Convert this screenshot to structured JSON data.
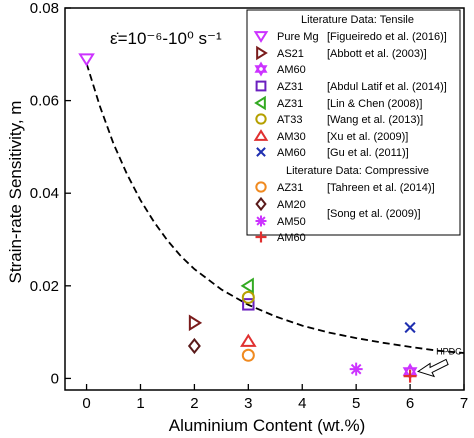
{
  "chart_data": {
    "type": "scatter",
    "xlabel": "Aluminium Content (wt.%)",
    "ylabel": "Strain-rate Sensitivity, m",
    "xlim": [
      -0.4,
      7
    ],
    "ylim": [
      -0.0025,
      0.08
    ],
    "xticks": [
      "0",
      "1",
      "2",
      "3",
      "4",
      "5",
      "6",
      "7"
    ],
    "yticks": [
      "0",
      "0.02",
      "0.04",
      "0.06",
      "0.08"
    ],
    "strain_rate_label": "ε̇=10⁻⁶-10⁰ s⁻¹",
    "grid": false,
    "legend_position": "top-right",
    "legend_tensile_header": "Literature Data: Tensile",
    "legend_compressive_header": "Literature Data: Compressive",
    "series": [
      {
        "name": "Pure Mg",
        "reference": "[Figueiredo et al. (2016)]",
        "marker": "triangle-down",
        "color": "#cc33ff",
        "points": [
          [
            0,
            0.069
          ]
        ]
      },
      {
        "name": "AS21",
        "reference": "[Abbott et al. (2003)]",
        "marker": "triangle-right",
        "color": "#7a1c1c",
        "points": [
          [
            2,
            0.012
          ]
        ]
      },
      {
        "name": "AM60",
        "reference": "",
        "marker": "star-of-david",
        "color": "#cc33ff",
        "points": [
          [
            6,
            0.0015
          ]
        ]
      },
      {
        "name": "AZ31",
        "reference": "[Abdul Latif et al. (2014)]",
        "marker": "square",
        "color": "#6a1fbf",
        "points": [
          [
            3,
            0.016
          ]
        ]
      },
      {
        "name": "AZ31",
        "reference": "[Lin & Chen (2008)]",
        "marker": "triangle-left",
        "color": "#33aa22",
        "points": [
          [
            3,
            0.02
          ]
        ]
      },
      {
        "name": "AT33",
        "reference": "[Wang et al. (2013)]",
        "marker": "circle",
        "color": "#b5a000",
        "points": [
          [
            3,
            0.0175
          ]
        ]
      },
      {
        "name": "AM30",
        "reference": "[Xu et al. (2009)]",
        "marker": "triangle-up",
        "color": "#e03030",
        "points": [
          [
            3,
            0.008
          ]
        ]
      },
      {
        "name": "AM60",
        "reference": "[Gu et al. (2011)]",
        "marker": "x",
        "color": "#1f2fb0",
        "points": [
          [
            6,
            0.011
          ]
        ]
      },
      {
        "name": "AZ31",
        "reference": "[Tahreen et al. (2014)]",
        "marker": "circle",
        "color": "#f08a20",
        "points": [
          [
            3,
            0.005
          ]
        ]
      },
      {
        "name": "AM20",
        "reference": "",
        "marker": "diamond",
        "color": "#5a1a1a",
        "points": [
          [
            2,
            0.007
          ]
        ]
      },
      {
        "name": "AM50",
        "reference": "[Song et al. (2009)]",
        "marker": "asterisk",
        "color": "#cc33ff",
        "points": [
          [
            5,
            0.002
          ]
        ]
      },
      {
        "name": "AM60",
        "reference": "",
        "marker": "plus",
        "color": "#e03030",
        "points": [
          [
            6,
            0.0005
          ]
        ]
      }
    ],
    "trend_curve": {
      "style": "dashed",
      "x": [
        0,
        0.25,
        0.5,
        0.75,
        1,
        1.25,
        1.5,
        1.75,
        2,
        2.5,
        3,
        3.5,
        4,
        4.5,
        5,
        5.5,
        6,
        6.5,
        7
      ],
      "y": [
        0.068,
        0.0587,
        0.0507,
        0.0441,
        0.0385,
        0.0338,
        0.0298,
        0.0264,
        0.0236,
        0.0192,
        0.0159,
        0.0134,
        0.0114,
        0.0099,
        0.0087,
        0.0077,
        0.0068,
        0.006,
        0.0055
      ]
    },
    "annotation": {
      "text": "HPDC",
      "target": [
        6,
        0.0015
      ]
    }
  }
}
